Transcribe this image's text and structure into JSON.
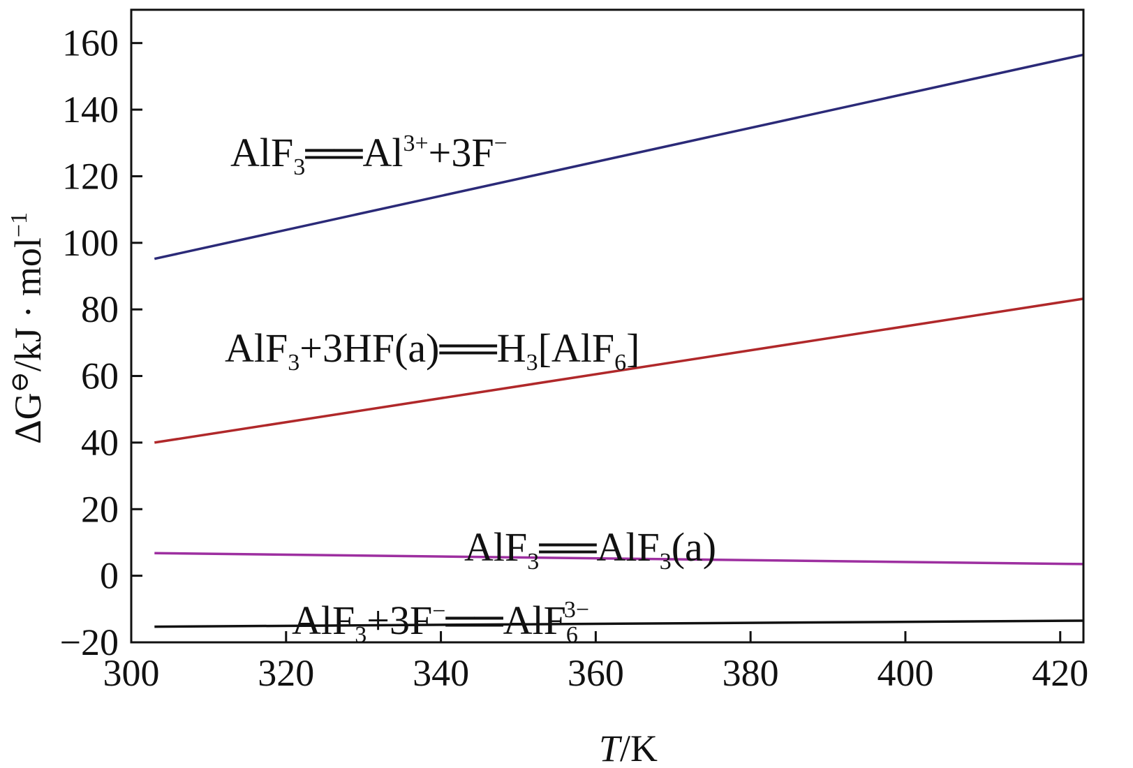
{
  "chart_data": {
    "type": "line",
    "title": "",
    "xlabel_italic": "T",
    "xlabel_rest": "/K",
    "ylabel_prefix": "ΔG",
    "ylabel_sup": "⊖",
    "ylabel_rest": "/kJ · mol",
    "ylabel_rest_sup": "−1",
    "xlim": [
      300,
      423
    ],
    "ylim": [
      -20,
      170
    ],
    "xticks": [
      300,
      320,
      340,
      360,
      380,
      400,
      420
    ],
    "yticks": [
      -20,
      0,
      20,
      40,
      60,
      80,
      100,
      120,
      140,
      160
    ],
    "xtick_labels": [
      "300",
      "320",
      "340",
      "360",
      "380",
      "400",
      "420"
    ],
    "ytick_labels": [
      "−20",
      "0",
      "20",
      "40",
      "60",
      "80",
      "100",
      "120",
      "140",
      "160"
    ],
    "grid": false,
    "series": [
      {
        "label": "AlF3 = Al3+ + 3F−",
        "color": "#2b2a78",
        "x": [
          303,
          423
        ],
        "y": [
          95.2,
          156.5
        ]
      },
      {
        "label": "AlF3 + 3HF(a) = H3[AlF6]",
        "color": "#b0282a",
        "x": [
          303,
          423
        ],
        "y": [
          40.0,
          83.2
        ]
      },
      {
        "label": "AlF3 = AlF3(a)",
        "color": "#9d2fa0",
        "x": [
          303,
          423
        ],
        "y": [
          6.8,
          3.5
        ]
      },
      {
        "label": "AlF3 + 3F− = AlF6 3−",
        "color": "#111111",
        "x": [
          303,
          423
        ],
        "y": [
          -15.3,
          -13.5
        ]
      }
    ],
    "annotations": {
      "a1": {
        "p1": "AlF",
        "s1": "3",
        "eq": "══",
        "p2": "Al",
        "sup2": "3+",
        "p3": "+3F",
        "sup3": "−"
      },
      "a2": {
        "p1": "AlF",
        "s1": "3",
        "p2": "+3HF(a)",
        "eq": "══",
        "p3": "H",
        "s3": "3",
        "p4": "[AlF",
        "s4": "6",
        "p5": "]"
      },
      "a3": {
        "p1": "AlF",
        "s1": "3",
        "eq": "══",
        "p2": "AlF",
        "s2": "3",
        "p3": "(a)"
      },
      "a4": {
        "p1": "AlF",
        "s1": "3",
        "p2": "+3F",
        "sup2": "−",
        "eq": "══",
        "p3": "AlF",
        "sub3": "6",
        "sup3": "3−"
      }
    }
  }
}
